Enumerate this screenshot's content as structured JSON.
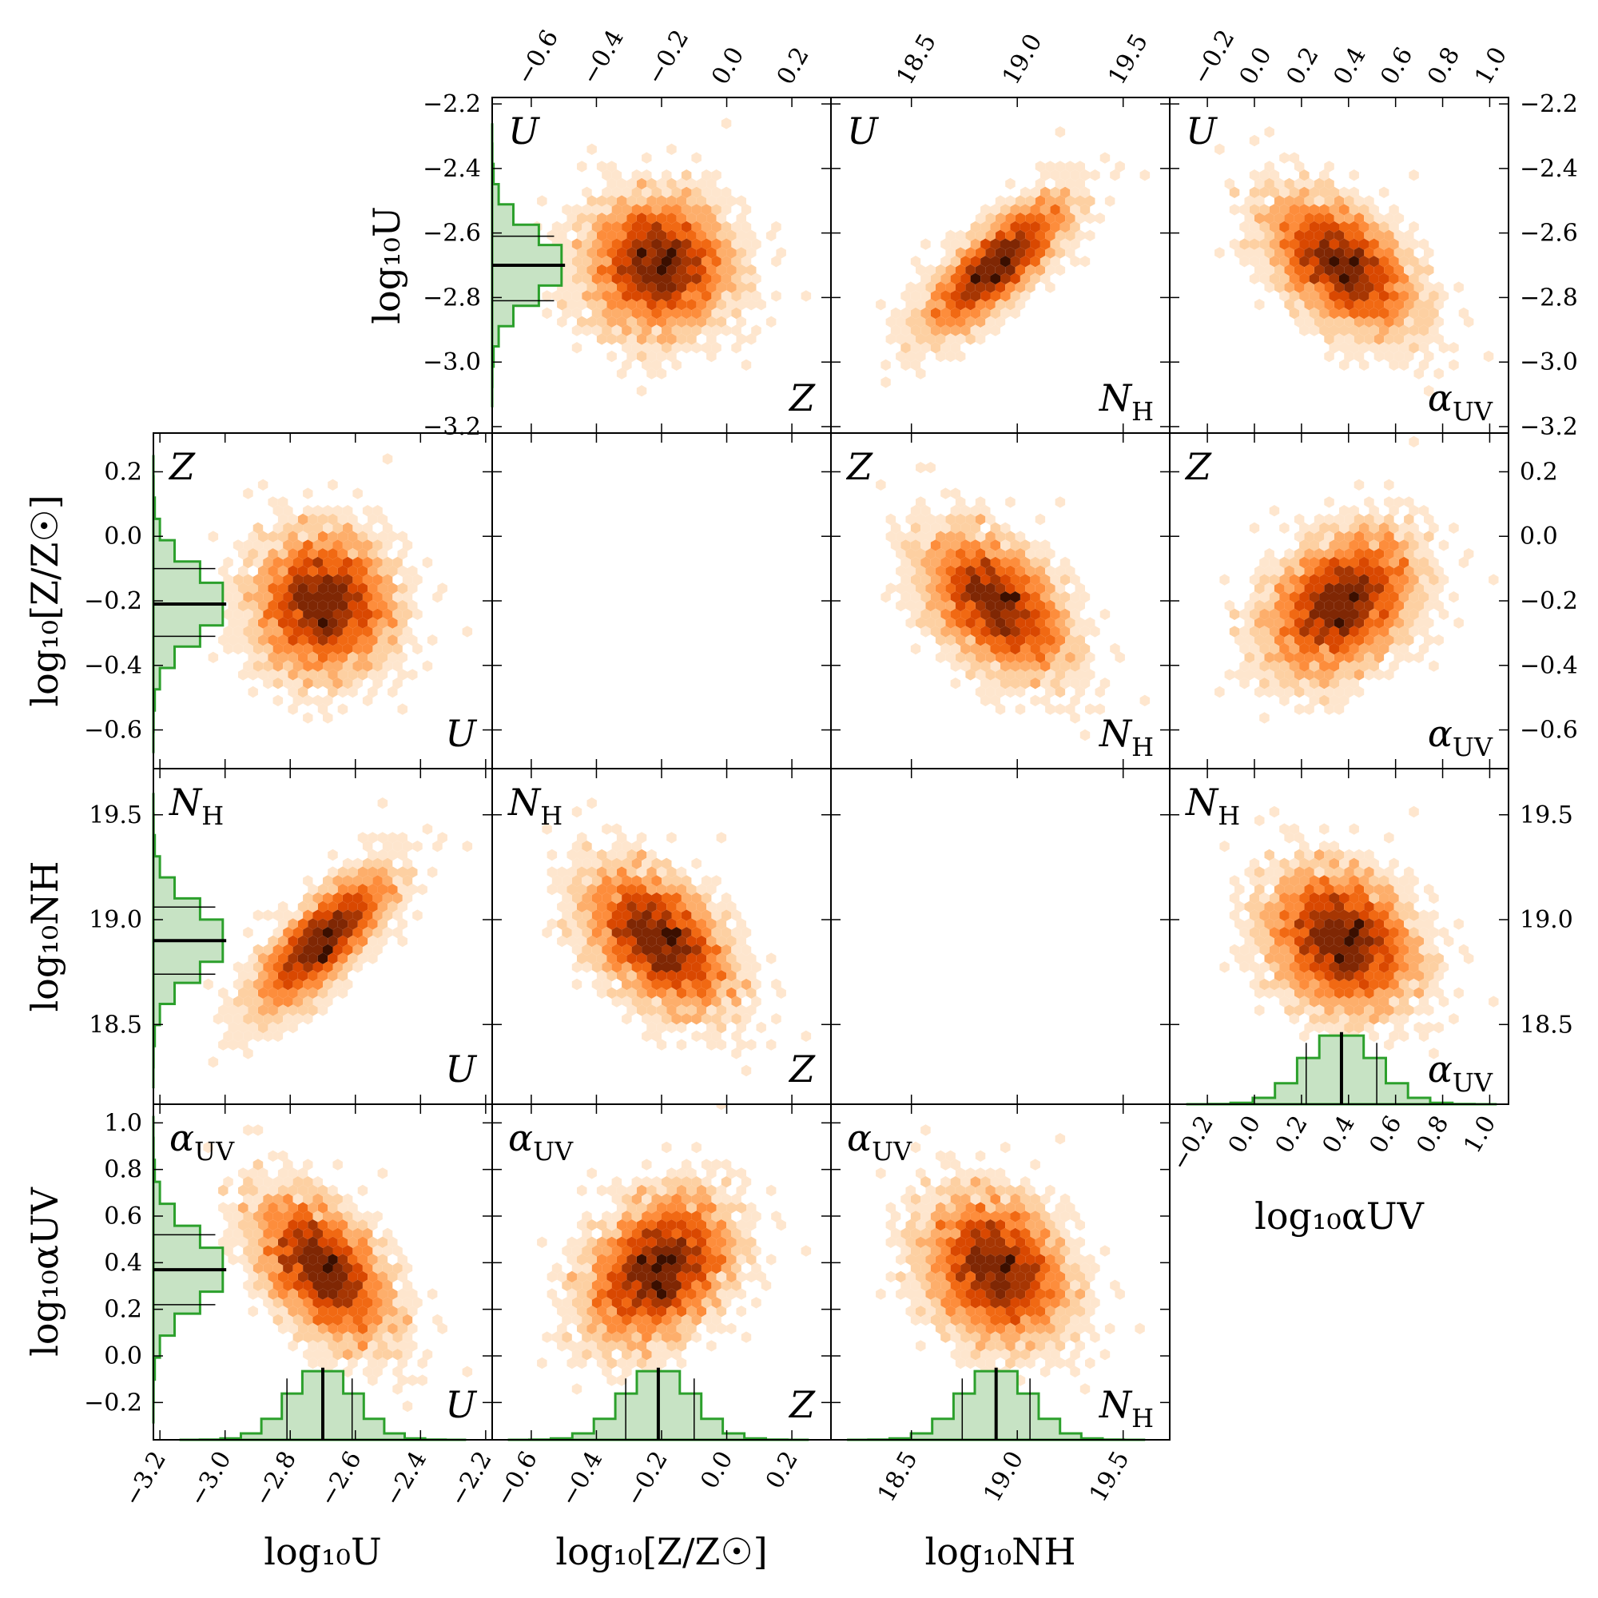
{
  "params": [
    {
      "key": "U",
      "panel_label": "U",
      "axis_label": "log₁₀U",
      "range": [
        -3.22,
        -2.18
      ],
      "ticks": [
        -3.2,
        -3.0,
        -2.8,
        -2.6,
        -2.4,
        -2.2
      ],
      "tick_labels": [
        "−3.2",
        "−3.0",
        "−2.8",
        "−2.6",
        "−2.4",
        "−2.2"
      ],
      "median": -2.7,
      "sigma_low": -2.81,
      "sigma_high": -2.61,
      "std": 0.1
    },
    {
      "key": "Z",
      "panel_label": "Z",
      "axis_label": "log₁₀[Z/Z☉]",
      "range": [
        -0.72,
        0.32
      ],
      "ticks": [
        -0.6,
        -0.4,
        -0.2,
        0.0,
        0.2
      ],
      "tick_labels": [
        "−0.6",
        "−0.4",
        "−0.2",
        "0.0",
        "0.2"
      ],
      "median": -0.21,
      "sigma_low": -0.31,
      "sigma_high": -0.1,
      "std": 0.105
    },
    {
      "key": "NH",
      "panel_label": "NH",
      "axis_label": "log₁₀NH",
      "range": [
        18.12,
        19.72
      ],
      "ticks": [
        18.5,
        19.0,
        19.5
      ],
      "tick_labels": [
        "18.5",
        "19.0",
        "19.5"
      ],
      "median": 18.9,
      "sigma_low": 18.74,
      "sigma_high": 19.06,
      "std": 0.16
    },
    {
      "key": "aUV",
      "panel_label": "αUV",
      "axis_label": "log₁₀αUV",
      "range": [
        -0.36,
        1.08
      ],
      "ticks": [
        -0.2,
        0.0,
        0.2,
        0.4,
        0.6,
        0.8,
        1.0
      ],
      "tick_labels": [
        "−0.2",
        "0.0",
        "0.2",
        "0.4",
        "0.6",
        "0.8",
        "1.0"
      ],
      "median": 0.37,
      "sigma_low": 0.22,
      "sigma_high": 0.52,
      "std": 0.15
    }
  ],
  "correlations": [
    [
      1,
      0.0,
      0.78,
      -0.5
    ],
    [
      0.0,
      1,
      -0.45,
      0.35
    ],
    [
      0.78,
      -0.45,
      1,
      -0.2
    ],
    [
      -0.5,
      0.35,
      -0.2,
      1
    ]
  ],
  "colors": {
    "hist_line": "#2ca02c",
    "hist_fill": "#c7e3c4",
    "median_line": "#000000",
    "hex_colormap": [
      "#fff5eb",
      "#fee6ce",
      "#fdd0a2",
      "#fdae6b",
      "#fd8d3c",
      "#f16913",
      "#d94801",
      "#a63603",
      "#7f2704",
      "#3b0f00"
    ]
  },
  "chart_data": {
    "type": "scatter",
    "subtype": "corner plot of hexbin posterior densities with marginal histograms",
    "parameters": [
      "log₁₀U",
      "log₁₀[Z/Z☉]",
      "log₁₀NH",
      "log₁₀αUV"
    ],
    "medians": [
      -2.7,
      -0.21,
      18.9,
      0.37
    ],
    "one_sigma_intervals": [
      [
        -2.81,
        -2.61
      ],
      [
        -0.31,
        -0.1
      ],
      [
        18.74,
        19.06
      ],
      [
        0.22,
        0.52
      ]
    ],
    "pair_correlations": {
      "U-Z": 0.0,
      "U-NH": 0.78,
      "U-aUV": -0.5,
      "Z-NH": -0.45,
      "Z-aUV": 0.35,
      "NH-aUV": -0.2
    },
    "grid": false,
    "legend": "none"
  }
}
